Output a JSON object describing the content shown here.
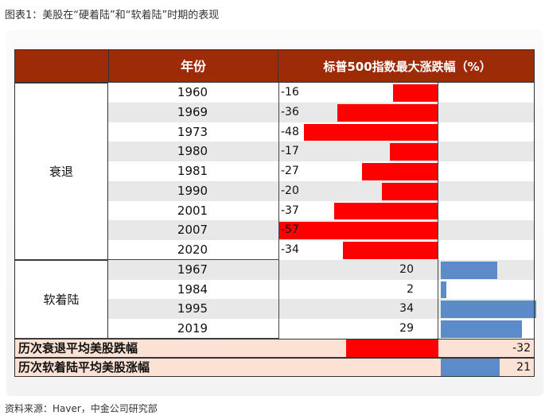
{
  "caption": "图表1：美股在“硬着陆”和“软着陆”时期的表现",
  "source": "资料来源：Haver，中金公司研究部",
  "colors": {
    "header": "#9e2b08",
    "negative_bar": "#ff0000",
    "positive_bar": "#5b8bc9",
    "summary_bg": "#fbe2d5"
  },
  "chart_data": {
    "type": "table",
    "columns": [
      "年份",
      "标普500指数最大涨跌幅（%）"
    ],
    "groups": [
      {
        "name": "衰退",
        "rows": [
          {
            "year": "1960",
            "value": -16
          },
          {
            "year": "1969",
            "value": -36
          },
          {
            "year": "1973",
            "value": -48
          },
          {
            "year": "1980",
            "value": -17
          },
          {
            "year": "1981",
            "value": -27
          },
          {
            "year": "1990",
            "value": -20
          },
          {
            "year": "2001",
            "value": -37
          },
          {
            "year": "2007",
            "value": -57
          },
          {
            "year": "2020",
            "value": -34
          }
        ]
      },
      {
        "name": "软着陆",
        "rows": [
          {
            "year": "1967",
            "value": 20
          },
          {
            "year": "1984",
            "value": 2
          },
          {
            "year": "1995",
            "value": 34
          },
          {
            "year": "2019",
            "value": 29
          }
        ]
      }
    ],
    "summary": [
      {
        "label": "历次衰退平均美股跌幅",
        "value": -32
      },
      {
        "label": "历次软着陆平均美股涨幅",
        "value": 21
      }
    ]
  }
}
